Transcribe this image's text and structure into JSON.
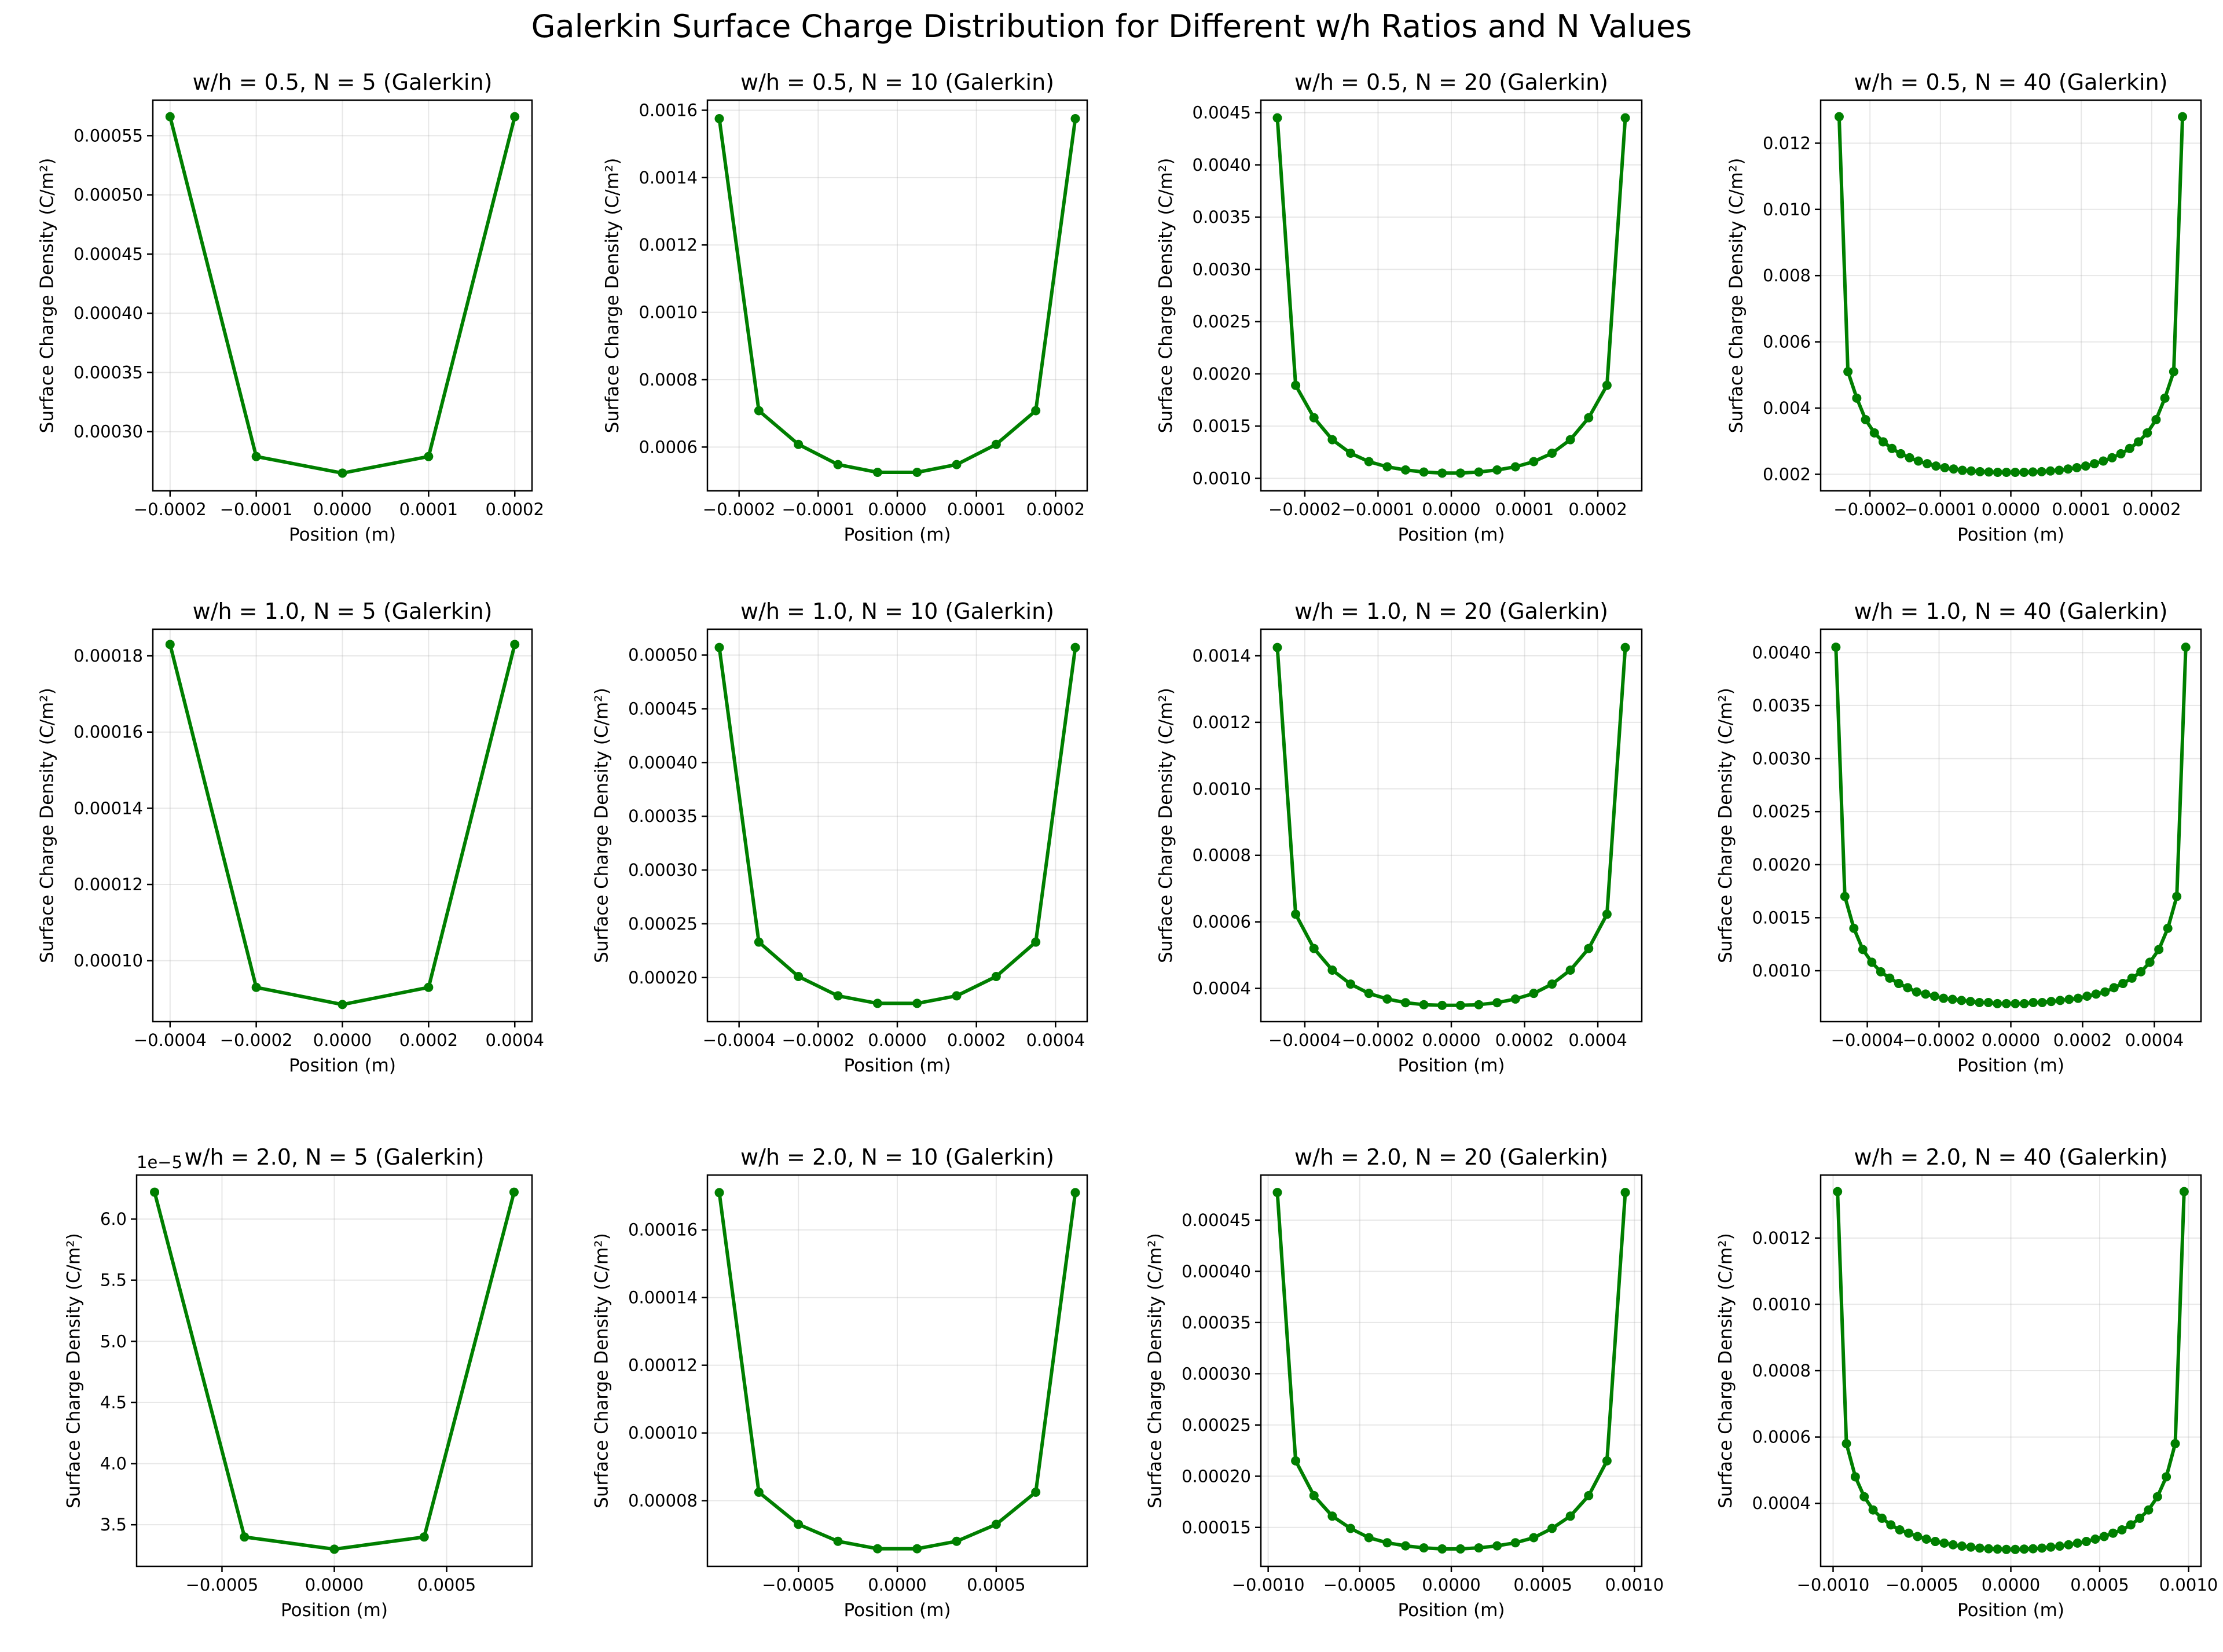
{
  "figure": {
    "title": "Galerkin Surface Charge Distribution for Different w/h Ratios and N Values"
  },
  "colors": {
    "series": "#007f00",
    "grid": "#b0b0b0",
    "axes": "#000000"
  },
  "chart_data": [
    {
      "type": "line",
      "title": "w/h = 0.5, N = 5 (Galerkin)",
      "xlabel": "Position (m)",
      "ylabel": "Surface Charge Density (C/m²)",
      "x": [
        -0.0002,
        -0.0001,
        0.0,
        0.0001,
        0.0002
      ],
      "y": [
        0.000566,
        0.000279,
        0.000265,
        0.000279,
        0.000566
      ],
      "xlim": [
        -0.00022,
        0.00022
      ],
      "ylim": [
        0.00025,
        0.00058
      ],
      "xticks": [
        -0.0002,
        -0.0001,
        0.0,
        0.0001,
        0.0002
      ],
      "xtick_labels": [
        "−0.0002",
        "−0.0001",
        "0.0000",
        "0.0001",
        "0.0002"
      ],
      "yticks": [
        0.0003,
        0.00035,
        0.0004,
        0.00045,
        0.0005,
        0.00055
      ],
      "ytick_labels": [
        "0.00030",
        "0.00035",
        "0.00040",
        "0.00045",
        "0.00050",
        "0.00055"
      ],
      "offset": "",
      "grid": true
    },
    {
      "type": "line",
      "title": "w/h = 0.5, N = 10 (Galerkin)",
      "xlabel": "Position (m)",
      "ylabel": "Surface Charge Density (C/m²)",
      "x": [
        -0.000225,
        -0.000175,
        -0.000125,
        -7.5e-05,
        -2.5e-05,
        2.5e-05,
        7.5e-05,
        0.000125,
        0.000175,
        0.000225
      ],
      "y": [
        0.001575,
        0.000708,
        0.000608,
        0.000548,
        0.000525,
        0.000525,
        0.000548,
        0.000608,
        0.000708,
        0.001575
      ],
      "xlim": [
        -0.00024,
        0.00024
      ],
      "ylim": [
        0.00047,
        0.00163
      ],
      "xticks": [
        -0.0002,
        -0.0001,
        0.0,
        0.0001,
        0.0002
      ],
      "xtick_labels": [
        "−0.0002",
        "−0.0001",
        "0.0000",
        "0.0001",
        "0.0002"
      ],
      "yticks": [
        0.0006,
        0.0008,
        0.001,
        0.0012,
        0.0014,
        0.0016
      ],
      "ytick_labels": [
        "0.0006",
        "0.0008",
        "0.0010",
        "0.0012",
        "0.0014",
        "0.0016"
      ],
      "offset": "",
      "grid": true
    },
    {
      "type": "line",
      "title": "w/h = 0.5, N = 20 (Galerkin)",
      "xlabel": "Position (m)",
      "ylabel": "Surface Charge Density (C/m²)",
      "x": [
        -0.0002375,
        -0.0002125,
        -0.0001875,
        -0.0001625,
        -0.0001375,
        -0.0001125,
        -8.75e-05,
        -6.25e-05,
        -3.75e-05,
        -1.25e-05,
        1.25e-05,
        3.75e-05,
        6.25e-05,
        8.75e-05,
        0.0001125,
        0.0001375,
        0.0001625,
        0.0001875,
        0.0002125,
        0.0002375
      ],
      "y": [
        0.00445,
        0.00189,
        0.00158,
        0.00137,
        0.00124,
        0.00116,
        0.00111,
        0.00108,
        0.00106,
        0.00105,
        0.00105,
        0.00106,
        0.00108,
        0.00111,
        0.00116,
        0.00124,
        0.00137,
        0.00158,
        0.00189,
        0.00445
      ],
      "xlim": [
        -0.00026,
        0.00026
      ],
      "ylim": [
        0.00088,
        0.00462
      ],
      "xticks": [
        -0.0002,
        -0.0001,
        0.0,
        0.0001,
        0.0002
      ],
      "xtick_labels": [
        "−0.0002",
        "−0.0001",
        "0.0000",
        "0.0001",
        "0.0002"
      ],
      "yticks": [
        0.001,
        0.0015,
        0.002,
        0.0025,
        0.003,
        0.0035,
        0.004,
        0.0045
      ],
      "ytick_labels": [
        "0.0010",
        "0.0015",
        "0.0020",
        "0.0025",
        "0.0030",
        "0.0035",
        "0.0040",
        "0.0045"
      ],
      "offset": "",
      "grid": true
    },
    {
      "type": "line",
      "title": "w/h = 0.5, N = 40 (Galerkin)",
      "xlabel": "Position (m)",
      "ylabel": "Surface Charge Density (C/m²)",
      "x": [
        -0.00024375,
        -0.00023125,
        -0.00021875,
        -0.00020625,
        -0.00019375,
        -0.00018125,
        -0.00016875,
        -0.00015625,
        -0.00014375,
        -0.00013125,
        -0.00011875,
        -0.00010625,
        -9.375e-05,
        -8.125e-05,
        -6.875e-05,
        -5.625e-05,
        -4.375e-05,
        -3.125e-05,
        -1.875e-05,
        -6.25e-06,
        6.25e-06,
        1.875e-05,
        3.125e-05,
        4.375e-05,
        5.625e-05,
        6.875e-05,
        8.125e-05,
        9.375e-05,
        0.00010625,
        0.00011875,
        0.00013125,
        0.00014375,
        0.00015625,
        0.00016875,
        0.00018125,
        0.00019375,
        0.00020625,
        0.00021875,
        0.00023125,
        0.00024375
      ],
      "y": [
        0.0128,
        0.0051,
        0.0043,
        0.00365,
        0.00325,
        0.00298,
        0.00278,
        0.00262,
        0.0025,
        0.0024,
        0.00232,
        0.00225,
        0.0022,
        0.00216,
        0.00212,
        0.0021,
        0.00208,
        0.00207,
        0.00206,
        0.00206,
        0.00206,
        0.00206,
        0.00207,
        0.00208,
        0.0021,
        0.00212,
        0.00216,
        0.0022,
        0.00225,
        0.00232,
        0.0024,
        0.0025,
        0.00262,
        0.00278,
        0.00298,
        0.00325,
        0.00365,
        0.0043,
        0.0051,
        0.0128
      ],
      "xlim": [
        -0.00027,
        0.00027
      ],
      "ylim": [
        0.0015,
        0.0133
      ],
      "xticks": [
        -0.0002,
        -0.0001,
        0.0,
        0.0001,
        0.0002
      ],
      "xtick_labels": [
        "−0.0002",
        "−0.0001",
        "0.0000",
        "0.0001",
        "0.0002"
      ],
      "yticks": [
        0.002,
        0.004,
        0.006,
        0.008,
        0.01,
        0.012
      ],
      "ytick_labels": [
        "0.002",
        "0.004",
        "0.006",
        "0.008",
        "0.010",
        "0.012"
      ],
      "offset": "",
      "grid": true
    },
    {
      "type": "line",
      "title": "w/h = 1.0, N = 5 (Galerkin)",
      "xlabel": "Position (m)",
      "ylabel": "Surface Charge Density (C/m²)",
      "x": [
        -0.0004,
        -0.0002,
        0.0,
        0.0002,
        0.0004
      ],
      "y": [
        0.000183,
        9.3e-05,
        8.85e-05,
        9.3e-05,
        0.000183
      ],
      "xlim": [
        -0.00044,
        0.00044
      ],
      "ylim": [
        8.4e-05,
        0.000187
      ],
      "xticks": [
        -0.0004,
        -0.0002,
        0.0,
        0.0002,
        0.0004
      ],
      "xtick_labels": [
        "−0.0004",
        "−0.0002",
        "0.0000",
        "0.0002",
        "0.0004"
      ],
      "yticks": [
        0.0001,
        0.00012,
        0.00014,
        0.00016,
        0.00018
      ],
      "ytick_labels": [
        "0.00010",
        "0.00012",
        "0.00014",
        "0.00016",
        "0.00018"
      ],
      "offset": "",
      "grid": true
    },
    {
      "type": "line",
      "title": "w/h = 1.0, N = 10 (Galerkin)",
      "xlabel": "Position (m)",
      "ylabel": "Surface Charge Density (C/m²)",
      "x": [
        -0.00045,
        -0.00035,
        -0.00025,
        -0.00015,
        -5e-05,
        5e-05,
        0.00015,
        0.00025,
        0.00035,
        0.00045
      ],
      "y": [
        0.000507,
        0.000233,
        0.000201,
        0.000183,
        0.000176,
        0.000176,
        0.000183,
        0.000201,
        0.000233,
        0.000507
      ],
      "xlim": [
        -0.00048,
        0.00048
      ],
      "ylim": [
        0.000159,
        0.000524
      ],
      "xticks": [
        -0.0004,
        -0.0002,
        0.0,
        0.0002,
        0.0004
      ],
      "xtick_labels": [
        "−0.0004",
        "−0.0002",
        "0.0000",
        "0.0002",
        "0.0004"
      ],
      "yticks": [
        0.0002,
        0.00025,
        0.0003,
        0.00035,
        0.0004,
        0.00045,
        0.0005
      ],
      "ytick_labels": [
        "0.00020",
        "0.00025",
        "0.00030",
        "0.00035",
        "0.00040",
        "0.00045",
        "0.00050"
      ],
      "offset": "",
      "grid": true
    },
    {
      "type": "line",
      "title": "w/h = 1.0, N = 20 (Galerkin)",
      "xlabel": "Position (m)",
      "ylabel": "Surface Charge Density (C/m²)",
      "x": [
        -0.000475,
        -0.000425,
        -0.000375,
        -0.000325,
        -0.000275,
        -0.000225,
        -0.000175,
        -0.000125,
        -7.5e-05,
        -2.5e-05,
        2.5e-05,
        7.5e-05,
        0.000125,
        0.000175,
        0.000225,
        0.000275,
        0.000325,
        0.000375,
        0.000425,
        0.000475
      ],
      "y": [
        0.001425,
        0.000623,
        0.00052,
        0.000455,
        0.000413,
        0.000385,
        0.000368,
        0.000357,
        0.000351,
        0.000349,
        0.000349,
        0.000351,
        0.000357,
        0.000368,
        0.000385,
        0.000413,
        0.000455,
        0.00052,
        0.000623,
        0.001425
      ],
      "xlim": [
        -0.00052,
        0.00052
      ],
      "ylim": [
        0.0003,
        0.00148
      ],
      "xticks": [
        -0.0004,
        -0.0002,
        0.0,
        0.0002,
        0.0004
      ],
      "xtick_labels": [
        "−0.0004",
        "−0.0002",
        "0.0000",
        "0.0002",
        "0.0004"
      ],
      "yticks": [
        0.0004,
        0.0006,
        0.0008,
        0.001,
        0.0012,
        0.0014
      ],
      "ytick_labels": [
        "0.0004",
        "0.0006",
        "0.0008",
        "0.0010",
        "0.0012",
        "0.0014"
      ],
      "offset": "",
      "grid": true
    },
    {
      "type": "line",
      "title": "w/h = 1.0, N = 40 (Galerkin)",
      "xlabel": "Position (m)",
      "ylabel": "Surface Charge Density (C/m²)",
      "x": [
        -0.0004875,
        -0.0004625,
        -0.0004375,
        -0.0004125,
        -0.0003875,
        -0.0003625,
        -0.0003375,
        -0.0003125,
        -0.0002875,
        -0.0002625,
        -0.0002375,
        -0.0002125,
        -0.0001875,
        -0.0001625,
        -0.0001375,
        -0.0001125,
        -8.75e-05,
        -6.25e-05,
        -3.75e-05,
        -1.25e-05,
        1.25e-05,
        3.75e-05,
        6.25e-05,
        8.75e-05,
        0.0001125,
        0.0001375,
        0.0001625,
        0.0001875,
        0.0002125,
        0.0002375,
        0.0002625,
        0.0002875,
        0.0003125,
        0.0003375,
        0.0003625,
        0.0003875,
        0.0004125,
        0.0004375,
        0.0004625,
        0.0004875
      ],
      "y": [
        0.00405,
        0.0017,
        0.0014,
        0.0012,
        0.00108,
        0.00099,
        0.00093,
        0.00088,
        0.00084,
        0.0008,
        0.00078,
        0.00076,
        0.00074,
        0.00073,
        0.00072,
        0.00071,
        0.0007,
        0.0007,
        0.00069,
        0.00069,
        0.00069,
        0.00069,
        0.0007,
        0.0007,
        0.00071,
        0.00072,
        0.00073,
        0.00074,
        0.00076,
        0.00078,
        0.0008,
        0.00084,
        0.00088,
        0.00093,
        0.00099,
        0.00108,
        0.0012,
        0.0014,
        0.0017,
        0.00405
      ],
      "xlim": [
        -0.00053,
        0.00053
      ],
      "ylim": [
        0.00052,
        0.00422
      ],
      "xticks": [
        -0.0004,
        -0.0002,
        0.0,
        0.0002,
        0.0004
      ],
      "xtick_labels": [
        "−0.0004",
        "−0.0002",
        "0.0000",
        "0.0002",
        "0.0004"
      ],
      "yticks": [
        0.001,
        0.0015,
        0.002,
        0.0025,
        0.003,
        0.0035,
        0.004
      ],
      "ytick_labels": [
        "0.0010",
        "0.0015",
        "0.0020",
        "0.0025",
        "0.0030",
        "0.0035",
        "0.0040"
      ],
      "offset": "",
      "grid": true
    },
    {
      "type": "line",
      "title": "w/h = 2.0, N = 5 (Galerkin)",
      "xlabel": "Position (m)",
      "ylabel": "Surface Charge Density (C/m²)",
      "x": [
        -0.0008,
        -0.0004,
        0.0,
        0.0004,
        0.0008
      ],
      "y": [
        6.22,
        3.4,
        3.3,
        3.4,
        6.22
      ],
      "xlim": [
        -0.00088,
        0.00088
      ],
      "ylim": [
        3.16,
        6.36
      ],
      "xticks": [
        -0.0005,
        0.0,
        0.0005
      ],
      "xtick_labels": [
        "−0.0005",
        "0.0000",
        "0.0005"
      ],
      "yticks": [
        3.5,
        4.0,
        4.5,
        5.0,
        5.5,
        6.0
      ],
      "ytick_labels": [
        "3.5",
        "4.0",
        "4.5",
        "5.0",
        "5.5",
        "6.0"
      ],
      "offset": "1e−5",
      "grid": true
    },
    {
      "type": "line",
      "title": "w/h = 2.0, N = 10 (Galerkin)",
      "xlabel": "Position (m)",
      "ylabel": "Surface Charge Density (C/m²)",
      "x": [
        -0.0009,
        -0.0007,
        -0.0005,
        -0.0003,
        -0.0001,
        0.0001,
        0.0003,
        0.0005,
        0.0007,
        0.0009
      ],
      "y": [
        0.000171,
        8.25e-05,
        7.3e-05,
        6.8e-05,
        6.58e-05,
        6.58e-05,
        6.8e-05,
        7.3e-05,
        8.25e-05,
        0.000171
      ],
      "xlim": [
        -0.00096,
        0.00096
      ],
      "ylim": [
        6.06e-05,
        0.0001762
      ],
      "xticks": [
        -0.0005,
        0.0,
        0.0005
      ],
      "xtick_labels": [
        "−0.0005",
        "0.0000",
        "0.0005"
      ],
      "yticks": [
        8e-05,
        0.0001,
        0.00012,
        0.00014,
        0.00016
      ],
      "ytick_labels": [
        "0.00008",
        "0.00010",
        "0.00012",
        "0.00014",
        "0.00016"
      ],
      "offset": "",
      "grid": true
    },
    {
      "type": "line",
      "title": "w/h = 2.0, N = 20 (Galerkin)",
      "xlabel": "Position (m)",
      "ylabel": "Surface Charge Density (C/m²)",
      "x": [
        -0.00095,
        -0.00085,
        -0.00075,
        -0.00065,
        -0.00055,
        -0.00045,
        -0.00035,
        -0.00025,
        -0.00015,
        -5e-05,
        5e-05,
        0.00015,
        0.00025,
        0.00035,
        0.00045,
        0.00055,
        0.00065,
        0.00075,
        0.00085,
        0.00095
      ],
      "y": [
        0.000477,
        0.000215,
        0.000181,
        0.000161,
        0.000149,
        0.00014,
        0.000135,
        0.000132,
        0.00013,
        0.000129,
        0.000129,
        0.00013,
        0.000132,
        0.000135,
        0.00014,
        0.000149,
        0.000161,
        0.000181,
        0.000215,
        0.000477
      ],
      "xlim": [
        -0.00104,
        0.00104
      ],
      "ylim": [
        0.000112,
        0.000494
      ],
      "xticks": [
        -0.001,
        -0.0005,
        0.0,
        0.0005,
        0.001
      ],
      "xtick_labels": [
        "−0.0010",
        "−0.0005",
        "0.0000",
        "0.0005",
        "0.0010"
      ],
      "yticks": [
        0.00015,
        0.0002,
        0.00025,
        0.0003,
        0.00035,
        0.0004,
        0.00045
      ],
      "ytick_labels": [
        "0.00015",
        "0.00020",
        "0.00025",
        "0.00030",
        "0.00035",
        "0.00040",
        "0.00045"
      ],
      "offset": "",
      "grid": true
    },
    {
      "type": "line",
      "title": "w/h = 2.0, N = 40 (Galerkin)",
      "xlabel": "Position (m)",
      "ylabel": "Surface Charge Density (C/m²)",
      "x": [
        -0.000975,
        -0.000925,
        -0.000875,
        -0.000825,
        -0.000775,
        -0.000725,
        -0.000675,
        -0.000625,
        -0.000575,
        -0.000525,
        -0.000475,
        -0.000425,
        -0.000375,
        -0.000325,
        -0.000275,
        -0.000225,
        -0.000175,
        -0.000125,
        -7.5e-05,
        -2.5e-05,
        2.5e-05,
        7.5e-05,
        0.000125,
        0.000175,
        0.000225,
        0.000275,
        0.000325,
        0.000375,
        0.000425,
        0.000475,
        0.000525,
        0.000575,
        0.000625,
        0.000675,
        0.000725,
        0.000775,
        0.000825,
        0.000875,
        0.000925,
        0.000975
      ],
      "y": [
        0.00134,
        0.00058,
        0.00048,
        0.00042,
        0.00038,
        0.000355,
        0.000335,
        0.00032,
        0.00031,
        0.0003,
        0.000292,
        0.000285,
        0.00028,
        0.000275,
        0.000271,
        0.000268,
        0.000265,
        0.000263,
        0.000262,
        0.000261,
        0.000261,
        0.000262,
        0.000263,
        0.000265,
        0.000268,
        0.000271,
        0.000275,
        0.00028,
        0.000285,
        0.000292,
        0.0003,
        0.00031,
        0.00032,
        0.000335,
        0.000355,
        0.00038,
        0.00042,
        0.00048,
        0.00058,
        0.00134
      ],
      "xlim": [
        -0.00107,
        0.00107
      ],
      "ylim": [
        0.00021,
        0.00139
      ],
      "xticks": [
        -0.001,
        -0.0005,
        0.0,
        0.0005,
        0.001
      ],
      "xtick_labels": [
        "−0.0010",
        "−0.0005",
        "0.0000",
        "0.0005",
        "0.0010"
      ],
      "yticks": [
        0.0004,
        0.0006,
        0.0008,
        0.001,
        0.0012
      ],
      "ytick_labels": [
        "0.0004",
        "0.0006",
        "0.0008",
        "0.0010",
        "0.0012"
      ],
      "offset": "",
      "grid": true
    }
  ]
}
